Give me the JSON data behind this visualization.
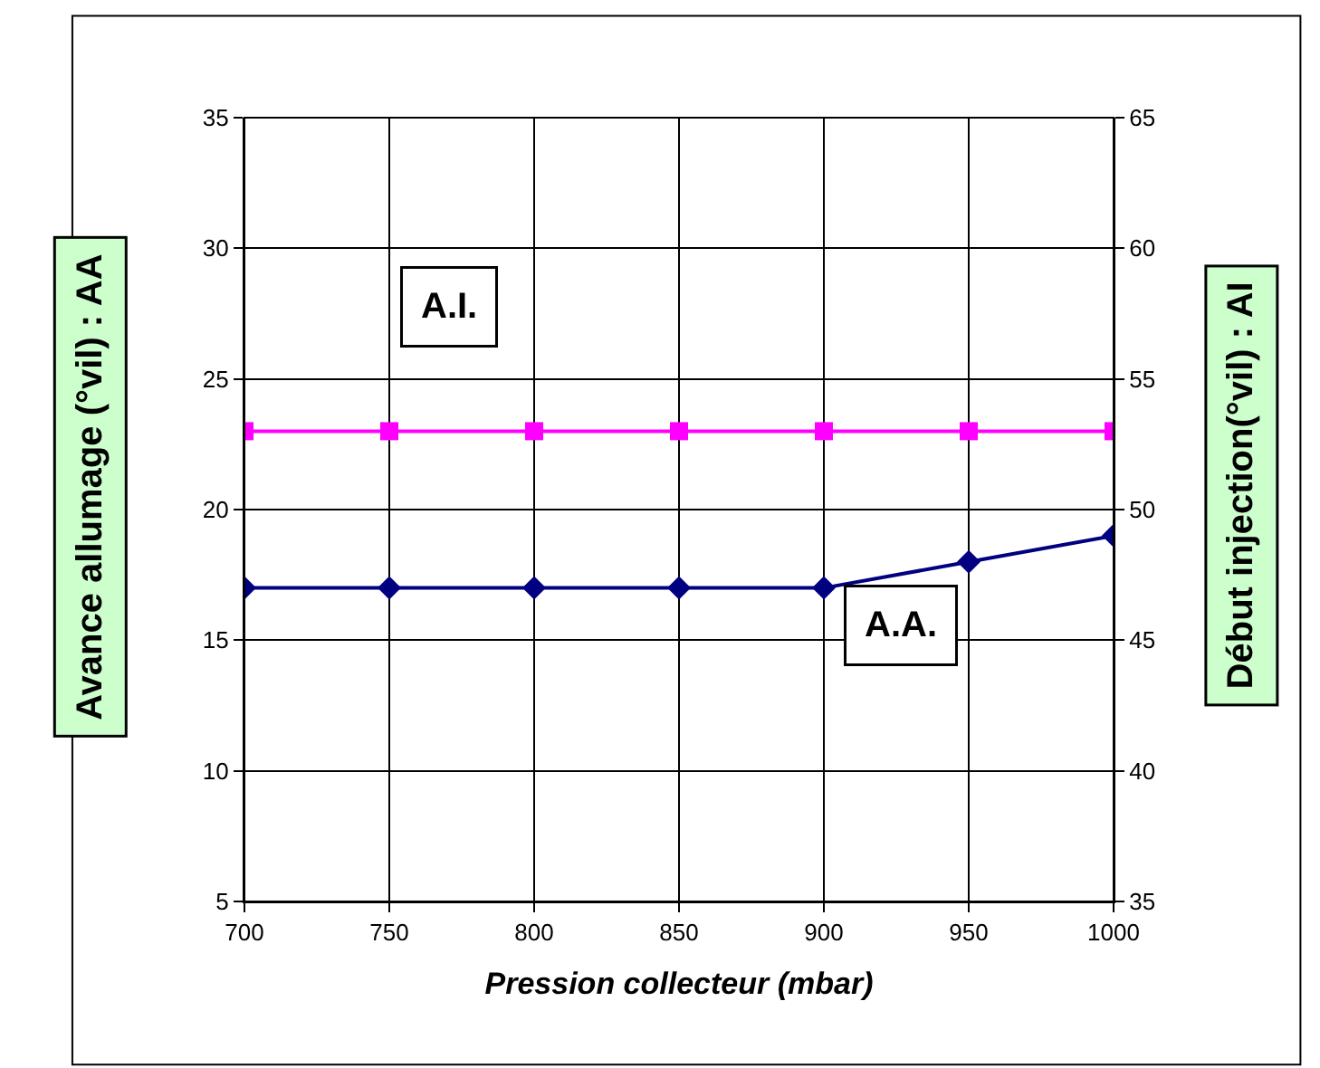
{
  "chart_data": {
    "type": "line",
    "xlabel": "Pression collecteur (mbar)",
    "ylabel": "Avance allumage (°vil) : AA",
    "y2label": "Début injection(°vil) : AI",
    "x": [
      700,
      750,
      800,
      850,
      900,
      950,
      1000
    ],
    "series": [
      {
        "name": "A.A.",
        "color": "#000080",
        "marker": "diamond",
        "values": [
          17,
          17,
          17,
          17,
          17,
          18,
          19
        ]
      },
      {
        "name": "A.I.",
        "color": "#ff00ff",
        "marker": "square",
        "axis": "y2",
        "values": [
          53,
          53,
          53,
          53,
          53,
          53,
          53
        ]
      }
    ],
    "xlim": [
      700,
      1000
    ],
    "xticks": [
      700,
      750,
      800,
      850,
      900,
      950,
      1000
    ],
    "ylim": [
      5,
      35
    ],
    "yticks": [
      5,
      10,
      15,
      20,
      25,
      30,
      35
    ],
    "y2lim": [
      35,
      65
    ],
    "y2ticks": [
      35,
      40,
      45,
      50,
      55,
      60,
      65
    ],
    "grid": true,
    "legend": false
  }
}
